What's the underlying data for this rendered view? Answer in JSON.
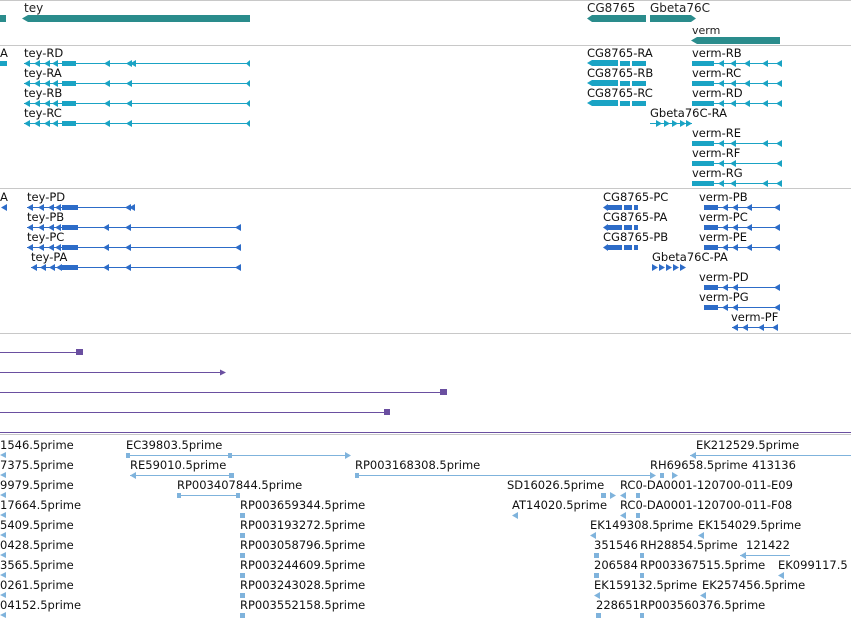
{
  "colors": {
    "gene": "#2a8c8c",
    "transcript": "#1aa3c4",
    "protein": "#2d6cc8",
    "alignment": "#6a4fa0",
    "est": "#7fb3dc",
    "separator": "#c8c8c8"
  },
  "gene_track": {
    "genes": [
      {
        "label": "tey"
      },
      {
        "label": "CG8765"
      },
      {
        "label": "Gbeta76C"
      },
      {
        "label": "verm"
      }
    ]
  },
  "transcript_track": {
    "items": [
      {
        "label": "A"
      },
      {
        "label": "tey-RD"
      },
      {
        "label": "tey-RA"
      },
      {
        "label": "tey-RB"
      },
      {
        "label": "tey-RC"
      },
      {
        "label": "CG8765-RA"
      },
      {
        "label": "CG8765-RB"
      },
      {
        "label": "CG8765-RC"
      },
      {
        "label": "Gbeta76C-RA"
      },
      {
        "label": "verm-RB"
      },
      {
        "label": "verm-RC"
      },
      {
        "label": "verm-RD"
      },
      {
        "label": "verm-RE"
      },
      {
        "label": "verm-RF"
      },
      {
        "label": "verm-RG"
      }
    ]
  },
  "protein_track": {
    "items": [
      {
        "label": "A"
      },
      {
        "label": "tey-PD"
      },
      {
        "label": "tey-PB"
      },
      {
        "label": "tey-PC"
      },
      {
        "label": "tey-PA"
      },
      {
        "label": "CG8765-PC"
      },
      {
        "label": "CG8765-PA"
      },
      {
        "label": "CG8765-PB"
      },
      {
        "label": "Gbeta76C-PA"
      },
      {
        "label": "verm-PB"
      },
      {
        "label": "verm-PC"
      },
      {
        "label": "verm-PE"
      },
      {
        "label": "verm-PD"
      },
      {
        "label": "verm-PG"
      },
      {
        "label": "verm-PF"
      }
    ]
  },
  "est_track": {
    "items": [
      {
        "label": "1546.5prime"
      },
      {
        "label": "EC39803.5prime"
      },
      {
        "label": "EK212529.5prime"
      },
      {
        "label": "7375.5prime"
      },
      {
        "label": "RE59010.5prime"
      },
      {
        "label": "RP003168308.5prime"
      },
      {
        "label": "RH69658.5prime"
      },
      {
        "label": "413136"
      },
      {
        "label": "9979.5prime"
      },
      {
        "label": "RP003407844.5prime"
      },
      {
        "label": "SD16026.5prime"
      },
      {
        "label": "RC0-DA0001-120700-011-E09"
      },
      {
        "label": "17664.5prime"
      },
      {
        "label": "RP003659344.5prime"
      },
      {
        "label": "AT14020.5prime"
      },
      {
        "label": "RC0-DA0001-120700-011-F08"
      },
      {
        "label": "5409.5prime"
      },
      {
        "label": "RP003193272.5prime"
      },
      {
        "label": "EK149308.5prime"
      },
      {
        "label": "EK154029.5prime"
      },
      {
        "label": "0428.5prime"
      },
      {
        "label": "RP003058796.5prime"
      },
      {
        "label": "351546"
      },
      {
        "label": "RH28854.5prime"
      },
      {
        "label": "121422"
      },
      {
        "label": "3565.5prime"
      },
      {
        "label": "RP003244609.5prime"
      },
      {
        "label": "206584"
      },
      {
        "label": "RP003367515.5prime"
      },
      {
        "label": "EK099117.5"
      },
      {
        "label": "0261.5prime"
      },
      {
        "label": "RP003243028.5prime"
      },
      {
        "label": "EK159132.5prime"
      },
      {
        "label": "EK257456.5prime"
      },
      {
        "label": "04152.5prime"
      },
      {
        "label": "RP003552158.5prime"
      },
      {
        "label": "228651"
      },
      {
        "label": "RP003560376.5prime"
      }
    ]
  }
}
